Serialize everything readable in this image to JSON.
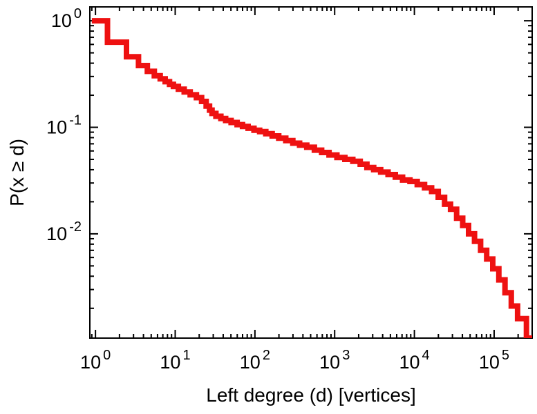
{
  "chart_data": {
    "type": "line",
    "subtype": "step-ccdf-histeps",
    "title": "",
    "xlabel": "Left degree (d) [vertices]",
    "ylabel": "P(x ≥ d)",
    "x_scale": "log",
    "y_scale": "log",
    "xlim": [
      0.85,
      300000
    ],
    "ylim": [
      0.00105,
      1.35
    ],
    "x_tick_exponents": [
      0,
      1,
      2,
      3,
      4,
      5
    ],
    "y_tick_exponents": [
      0,
      -1,
      -2
    ],
    "tick_label_base": "10",
    "grid": false,
    "legend": "none",
    "frame_color": "#000000",
    "line_color": "#ee1111",
    "line_width": 8,
    "points": [
      [
        1,
        1.0
      ],
      [
        2,
        0.63
      ],
      [
        3,
        0.46
      ],
      [
        4,
        0.38
      ],
      [
        5,
        0.335
      ],
      [
        6,
        0.305
      ],
      [
        7,
        0.285
      ],
      [
        8,
        0.268
      ],
      [
        9,
        0.253
      ],
      [
        10,
        0.242
      ],
      [
        12,
        0.228
      ],
      [
        14,
        0.215
      ],
      [
        17,
        0.202
      ],
      [
        20,
        0.19
      ],
      [
        23,
        0.175
      ],
      [
        26,
        0.158
      ],
      [
        28,
        0.145
      ],
      [
        30,
        0.135
      ],
      [
        35,
        0.127
      ],
      [
        40,
        0.121
      ],
      [
        46,
        0.116
      ],
      [
        55,
        0.111
      ],
      [
        65,
        0.106
      ],
      [
        75,
        0.102
      ],
      [
        90,
        0.098
      ],
      [
        105,
        0.094
      ],
      [
        125,
        0.091
      ],
      [
        150,
        0.087
      ],
      [
        180,
        0.083
      ],
      [
        220,
        0.079
      ],
      [
        270,
        0.075
      ],
      [
        330,
        0.071
      ],
      [
        400,
        0.068
      ],
      [
        500,
        0.065
      ],
      [
        620,
        0.061
      ],
      [
        760,
        0.058
      ],
      [
        950,
        0.055
      ],
      [
        1200,
        0.052
      ],
      [
        1500,
        0.05
      ],
      [
        1900,
        0.048
      ],
      [
        2300,
        0.045
      ],
      [
        2800,
        0.042
      ],
      [
        3400,
        0.04
      ],
      [
        4200,
        0.038
      ],
      [
        5200,
        0.036
      ],
      [
        6400,
        0.034
      ],
      [
        7900,
        0.032
      ],
      [
        9800,
        0.031
      ],
      [
        12000,
        0.029
      ],
      [
        15000,
        0.027
      ],
      [
        18000,
        0.025
      ],
      [
        22000,
        0.022
      ],
      [
        26000,
        0.019
      ],
      [
        31000,
        0.017
      ],
      [
        37000,
        0.014
      ],
      [
        44000,
        0.012
      ],
      [
        52000,
        0.01
      ],
      [
        62000,
        0.0085
      ],
      [
        74000,
        0.007
      ],
      [
        88000,
        0.0058
      ],
      [
        105000,
        0.0047
      ],
      [
        125000,
        0.0037
      ],
      [
        150000,
        0.0028
      ],
      [
        180000,
        0.0021
      ],
      [
        215000,
        0.0016
      ],
      [
        300000,
        0.00105
      ]
    ]
  }
}
